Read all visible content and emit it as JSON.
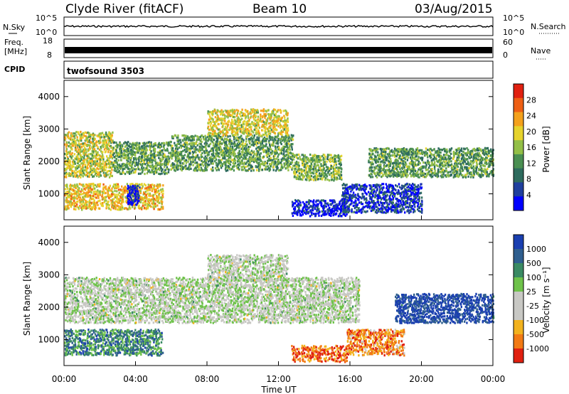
{
  "header": {
    "title": "Clyde River (fitACF)",
    "beam": "Beam 10",
    "date": "03/Aug/2015"
  },
  "panels": {
    "nsky": {
      "left_label": "N.Sky",
      "left_ticks": [
        "10^5",
        "10^0"
      ],
      "right_ticks": [
        "10^5",
        "10^0"
      ],
      "right_label": "N.Search"
    },
    "freq": {
      "left_label_1": "Freq.",
      "left_label_2": "[MHz]",
      "left_ticks": [
        "18",
        "8"
      ],
      "right_ticks": [
        "60",
        "0"
      ],
      "right_label": "Nave"
    },
    "cpid": {
      "label": "CPID",
      "program": "twofsound 3503"
    }
  },
  "chart_data": [
    {
      "type": "heatmap",
      "name": "power",
      "ylabel": "Slant Range [km]",
      "xlabel": "Time UT",
      "x_ticks": [
        "00:00",
        "04:00",
        "08:00",
        "12:00",
        "16:00",
        "20:00",
        "00:00"
      ],
      "y_ticks": [
        1000,
        2000,
        3000,
        4000
      ],
      "ylim": [
        200,
        4500
      ],
      "colorbar": {
        "label": "Power [dB]",
        "ticks": [
          "4",
          "8",
          "12",
          "16",
          "20",
          "24",
          "28"
        ],
        "colors": [
          "#0000ff",
          "#1f3f9e",
          "#2e6b5e",
          "#4a8f52",
          "#93bf47",
          "#e6d32c",
          "#f4a11c",
          "#ee5f14",
          "#e02010"
        ]
      },
      "regions": [
        {
          "t": [
            0.0,
            2.7
          ],
          "r": [
            1500,
            2900
          ],
          "level": 0.45
        },
        {
          "t": [
            2.7,
            6.0
          ],
          "r": [
            1600,
            2600
          ],
          "level": 0.6
        },
        {
          "t": [
            6.0,
            12.8
          ],
          "r": [
            1700,
            2800
          ],
          "level": 0.6
        },
        {
          "t": [
            12.8,
            15.5
          ],
          "r": [
            1400,
            2200
          ],
          "level": 0.55
        },
        {
          "t": [
            17.0,
            24.0
          ],
          "r": [
            1500,
            2400
          ],
          "level": 0.6
        },
        {
          "t": [
            0.0,
            5.5
          ],
          "r": [
            500,
            1300
          ],
          "level": 0.35
        },
        {
          "t": [
            3.5,
            4.2
          ],
          "r": [
            650,
            1250
          ],
          "level": 0.9
        },
        {
          "t": [
            12.7,
            15.8
          ],
          "r": [
            300,
            800
          ],
          "level": 0.9
        },
        {
          "t": [
            15.5,
            20.0
          ],
          "r": [
            400,
            1300
          ],
          "level": 0.85
        },
        {
          "t": [
            8.0,
            12.5
          ],
          "r": [
            2800,
            3600
          ],
          "level": 0.4
        }
      ]
    },
    {
      "type": "heatmap",
      "name": "velocity",
      "ylabel": "Slant Range [km]",
      "xlabel": "Time UT",
      "x_ticks": [
        "00:00",
        "04:00",
        "08:00",
        "12:00",
        "16:00",
        "20:00",
        "00:00"
      ],
      "y_ticks": [
        1000,
        2000,
        3000,
        4000
      ],
      "ylim": [
        200,
        4500
      ],
      "colorbar": {
        "label": "Velocity [m s⁻¹]",
        "ticks": [
          "1000",
          "500",
          "100",
          "25",
          "-25",
          "-100",
          "-500",
          "-1000"
        ],
        "colors": [
          "#1a3fb0",
          "#2f5f8f",
          "#3a8a63",
          "#6ec24a",
          "#c8c8c4",
          "#c8c8c4",
          "#f2b21e",
          "#f27a14",
          "#e02010"
        ]
      },
      "regions": [
        {
          "t": [
            0.0,
            16.5
          ],
          "r": [
            1500,
            2900
          ],
          "level": 0.5
        },
        {
          "t": [
            18.5,
            24.0
          ],
          "r": [
            1500,
            2400
          ],
          "level": 0.05
        },
        {
          "t": [
            0.0,
            5.5
          ],
          "r": [
            500,
            1300
          ],
          "level": 0.25
        },
        {
          "t": [
            12.7,
            15.8
          ],
          "r": [
            300,
            800
          ],
          "level": 0.85
        },
        {
          "t": [
            15.8,
            19.0
          ],
          "r": [
            500,
            1300
          ],
          "level": 0.8
        },
        {
          "t": [
            8.0,
            12.5
          ],
          "r": [
            2800,
            3600
          ],
          "level": 0.5
        }
      ]
    }
  ]
}
